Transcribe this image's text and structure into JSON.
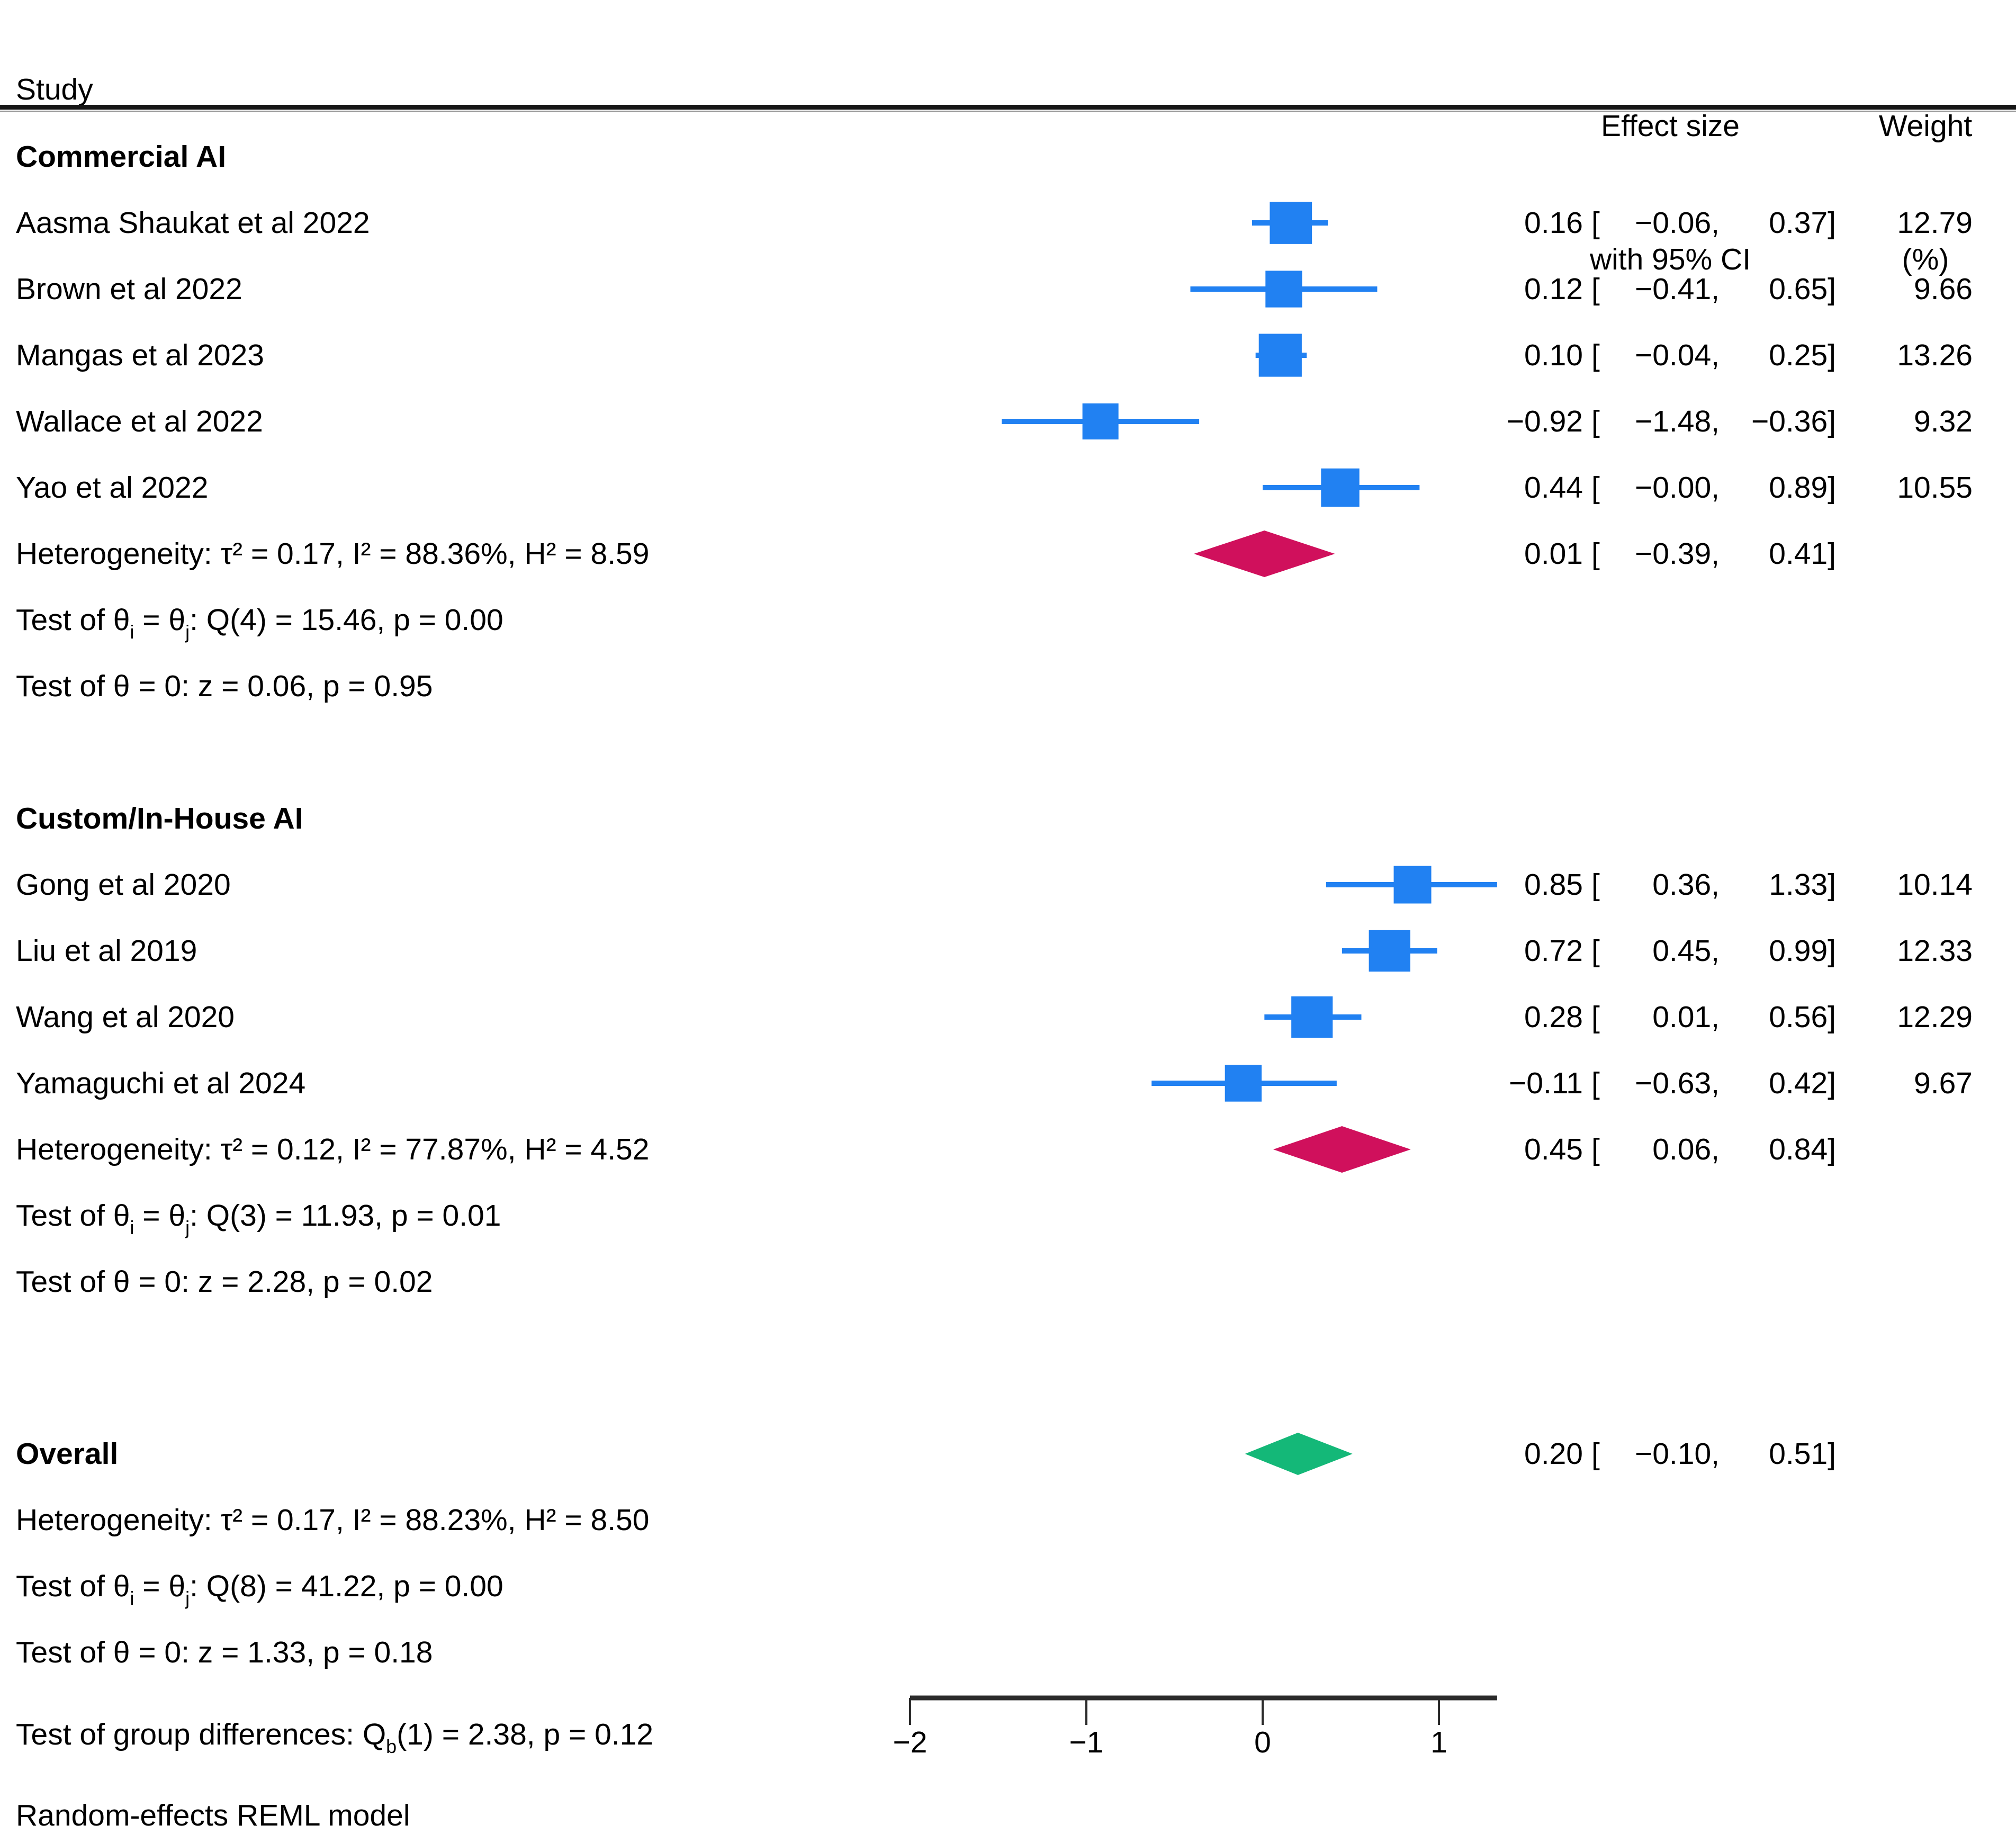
{
  "title_row": {
    "study": "Study",
    "effect_l1": "Effect size",
    "effect_l2": "with 95% CI",
    "weight_l1": "Weight",
    "weight_l2": "(%)"
  },
  "footnote": "Random-effects REML model",
  "colors": {
    "study_blue": "#2181F2",
    "group_diamond_pink": "#D0105C",
    "overall_diamond_green": "#14B878",
    "rule_dark": "#161616",
    "rule_gray": "#9a9a9a",
    "axis": "#2b2b2b",
    "text": "#000000"
  },
  "axis": {
    "tick_labels": [
      "−2",
      "−1",
      "0",
      "1"
    ],
    "tick_values": [
      -2,
      -1,
      0,
      1
    ],
    "xmin": -2,
    "xmax": 1.33
  },
  "chart_data": {
    "type": "forest",
    "x_axis_range": [
      -2,
      1.33
    ],
    "x_ticks": [
      -2,
      -1,
      0,
      1
    ],
    "columns": [
      "Study",
      "Effect size with 95% CI",
      "Weight (%)"
    ],
    "model_note": "Random-effects REML model",
    "groups": [
      {
        "name": "Commercial AI",
        "studies": [
          {
            "label": "Aasma Shaukat et al 2022",
            "est": 0.16,
            "ci_lo": -0.06,
            "ci_hi": 0.37,
            "weight_pct": 12.79,
            "est_s": "0.16",
            "lo_s": "−0.06,",
            "hi_s": "0.37]",
            "weight_s": "12.79"
          },
          {
            "label": "Brown et al 2022",
            "est": 0.12,
            "ci_lo": -0.41,
            "ci_hi": 0.65,
            "weight_pct": 9.66,
            "est_s": "0.12",
            "lo_s": "−0.41,",
            "hi_s": "0.65]",
            "weight_s": "9.66"
          },
          {
            "label": "Mangas et al 2023",
            "est": 0.1,
            "ci_lo": -0.04,
            "ci_hi": 0.25,
            "weight_pct": 13.26,
            "est_s": "0.10",
            "lo_s": "−0.04,",
            "hi_s": "0.25]",
            "weight_s": "13.26"
          },
          {
            "label": "Wallace et al 2022",
            "est": -0.92,
            "ci_lo": -1.48,
            "ci_hi": -0.36,
            "weight_pct": 9.32,
            "est_s": "−0.92",
            "lo_s": "−1.48,",
            "hi_s": "−0.36]",
            "weight_s": "9.32"
          },
          {
            "label": "Yao et al 2022",
            "est": 0.44,
            "ci_lo": 0.0,
            "ci_hi": 0.89,
            "weight_pct": 10.55,
            "est_s": "0.44",
            "lo_s": "−0.00,",
            "hi_s": "0.89]",
            "weight_s": "10.55"
          }
        ],
        "summary": {
          "est": 0.01,
          "ci_lo": -0.39,
          "ci_hi": 0.41,
          "est_s": "0.01",
          "lo_s": "−0.39,",
          "hi_s": "0.41]"
        },
        "heterogeneity": "Heterogeneity: τ² = 0.17, I² = 88.36%, H² = 8.59",
        "test_theta_line": [
          [
            "Test of θ",
            0
          ],
          [
            "i",
            1
          ],
          [
            " = θ",
            0
          ],
          [
            "j",
            1
          ],
          [
            ": Q(4) = 15.46, p = 0.00",
            0
          ]
        ],
        "test_zero": "Test of θ = 0: z = 0.06, p = 0.95"
      },
      {
        "name": "Custom/In-House AI",
        "studies": [
          {
            "label": "Gong et al 2020",
            "est": 0.85,
            "ci_lo": 0.36,
            "ci_hi": 1.33,
            "weight_pct": 10.14,
            "est_s": "0.85",
            "lo_s": "0.36,",
            "hi_s": "1.33]",
            "weight_s": "10.14"
          },
          {
            "label": "Liu et al 2019",
            "est": 0.72,
            "ci_lo": 0.45,
            "ci_hi": 0.99,
            "weight_pct": 12.33,
            "est_s": "0.72",
            "lo_s": "0.45,",
            "hi_s": "0.99]",
            "weight_s": "12.33"
          },
          {
            "label": "Wang et al 2020",
            "est": 0.28,
            "ci_lo": 0.01,
            "ci_hi": 0.56,
            "weight_pct": 12.29,
            "est_s": "0.28",
            "lo_s": "0.01,",
            "hi_s": "0.56]",
            "weight_s": "12.29"
          },
          {
            "label": "Yamaguchi et al 2024",
            "est": -0.11,
            "ci_lo": -0.63,
            "ci_hi": 0.42,
            "weight_pct": 9.67,
            "est_s": "−0.11",
            "lo_s": "−0.63,",
            "hi_s": "0.42]",
            "weight_s": "9.67"
          }
        ],
        "summary": {
          "est": 0.45,
          "ci_lo": 0.06,
          "ci_hi": 0.84,
          "est_s": "0.45",
          "lo_s": "0.06,",
          "hi_s": "0.84]"
        },
        "heterogeneity": "Heterogeneity: τ² = 0.12, I² = 77.87%, H² = 4.52",
        "test_theta_line": [
          [
            "Test of θ",
            0
          ],
          [
            "i",
            1
          ],
          [
            " = θ",
            0
          ],
          [
            "j",
            1
          ],
          [
            ": Q(3) = 11.93, p = 0.01",
            0
          ]
        ],
        "test_zero": "Test of θ = 0: z = 2.28, p = 0.02"
      }
    ],
    "overall": {
      "label": "Overall",
      "est": 0.2,
      "ci_lo": -0.1,
      "ci_hi": 0.51,
      "est_s": "0.20",
      "lo_s": "−0.10,",
      "hi_s": "0.51]",
      "heterogeneity": "Heterogeneity: τ² = 0.17, I² = 88.23%, H² = 8.50",
      "test_theta_line": [
        [
          "Test of θ",
          0
        ],
        [
          "i",
          1
        ],
        [
          " = θ",
          0
        ],
        [
          "j",
          1
        ],
        [
          ": Q(8) = 41.22, p = 0.00",
          0
        ]
      ],
      "test_zero": "Test of θ = 0: z = 1.33, p = 0.18"
    },
    "group_difference_line": [
      [
        "Test of group differences: Q",
        0
      ],
      [
        "b",
        1
      ],
      [
        "(1) = 2.38, p = 0.12",
        0
      ]
    ]
  }
}
